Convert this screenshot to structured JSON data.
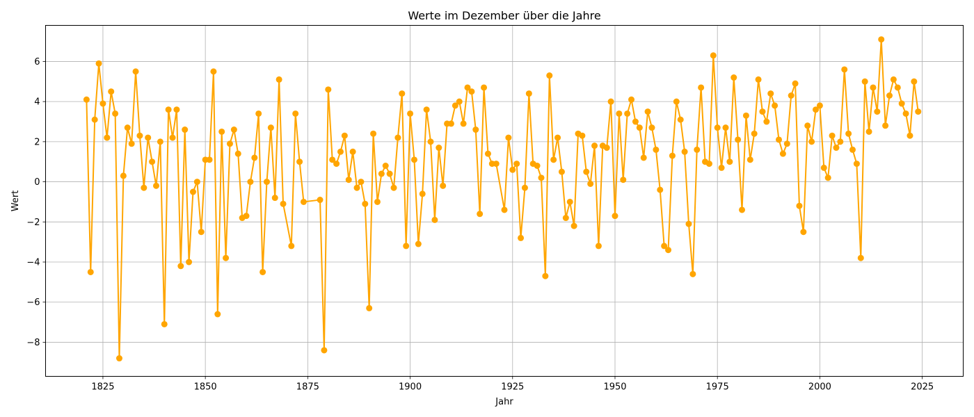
{
  "chart_data": {
    "type": "line",
    "title": "Werte im Dezember über die Jahre",
    "xlabel": "Jahr",
    "ylabel": "Wert",
    "xlim": [
      1811,
      2035
    ],
    "ylim": [
      -9.7,
      7.8
    ],
    "xticks": [
      1825,
      1850,
      1875,
      1900,
      1925,
      1950,
      1975,
      2000,
      2025
    ],
    "yticks": [
      -8,
      -6,
      -4,
      -2,
      0,
      2,
      4,
      6
    ],
    "grid": true,
    "color": "#FFA500",
    "marker": "circle",
    "series": [
      {
        "x": [
          1821,
          1822,
          1823,
          1824,
          1825,
          1826,
          1827,
          1828,
          1829,
          1830,
          1831,
          1832,
          1833,
          1834,
          1835,
          1836,
          1837,
          1838,
          1839,
          1840,
          1841,
          1842,
          1843,
          1844,
          1845,
          1846,
          1847,
          1848,
          1849,
          1850,
          1851,
          1852,
          1853,
          1854,
          1855,
          1856,
          1857,
          1858,
          1859,
          1860,
          1861,
          1862,
          1863,
          1864,
          1865,
          1866,
          1867,
          1868,
          1869,
          1871,
          1872,
          1873,
          1874,
          1878,
          1879,
          1880,
          1881,
          1882,
          1883,
          1884,
          1885,
          1886,
          1887,
          1888,
          1889,
          1890,
          1891,
          1892,
          1893,
          1894,
          1895,
          1896,
          1897,
          1898,
          1899,
          1900,
          1901,
          1902,
          1903,
          1904,
          1905,
          1906,
          1907,
          1908,
          1909,
          1910,
          1911,
          1912,
          1913,
          1914,
          1915,
          1916,
          1917,
          1918,
          1919,
          1920,
          1921,
          1923,
          1924,
          1925,
          1926,
          1927,
          1928,
          1929,
          1930,
          1931,
          1932,
          1933,
          1934,
          1935,
          1936,
          1937,
          1938,
          1939,
          1940,
          1941,
          1942,
          1943,
          1944,
          1945,
          1946,
          1947,
          1948,
          1949,
          1950,
          1951,
          1952,
          1953,
          1954,
          1955,
          1956,
          1957,
          1958,
          1959,
          1960,
          1961,
          1962,
          1963,
          1964,
          1965,
          1966,
          1967,
          1968,
          1969,
          1970,
          1971,
          1972,
          1973,
          1974,
          1975,
          1976,
          1977,
          1978,
          1979,
          1980,
          1981,
          1982,
          1983,
          1984,
          1985,
          1986,
          1987,
          1988,
          1989,
          1990,
          1991,
          1992,
          1993,
          1994,
          1995,
          1996,
          1997,
          1998,
          1999,
          2000,
          2001,
          2002,
          2003,
          2004,
          2005,
          2006,
          2007,
          2008,
          2009,
          2010,
          2011,
          2012,
          2013,
          2014,
          2015,
          2016,
          2017,
          2018,
          2019,
          2020,
          2021,
          2022,
          2023,
          2024
        ],
        "values": [
          4.1,
          -4.5,
          3.1,
          5.9,
          3.9,
          2.2,
          4.5,
          3.4,
          -8.8,
          0.3,
          2.7,
          1.9,
          5.5,
          2.3,
          -0.3,
          2.2,
          1.0,
          -0.2,
          2.0,
          -7.1,
          3.6,
          2.2,
          3.6,
          -4.2,
          2.6,
          -4.0,
          -0.5,
          0.0,
          -2.5,
          1.1,
          1.1,
          5.5,
          -6.6,
          2.5,
          -3.8,
          1.9,
          2.6,
          1.4,
          -1.8,
          -1.7,
          0.0,
          1.2,
          3.4,
          -4.5,
          0.0,
          2.7,
          -0.8,
          5.1,
          -1.1,
          -3.2,
          3.4,
          1.0,
          -1.0,
          -0.9,
          -8.4,
          4.6,
          1.1,
          0.9,
          1.5,
          2.3,
          0.1,
          1.5,
          -0.3,
          0.0,
          -1.1,
          -6.3,
          2.4,
          -1.0,
          0.4,
          0.8,
          0.4,
          -0.3,
          2.2,
          4.4,
          -3.2,
          3.4,
          1.1,
          -3.1,
          -0.6,
          3.6,
          2.0,
          -1.9,
          1.7,
          -0.2,
          2.9,
          2.9,
          3.8,
          4.0,
          2.9,
          4.7,
          4.5,
          2.6,
          -1.6,
          4.7,
          1.4,
          0.9,
          0.9,
          -1.4,
          2.2,
          0.6,
          0.9,
          -2.8,
          -0.3,
          4.4,
          0.9,
          0.8,
          0.2,
          -4.7,
          5.3,
          1.1,
          2.2,
          0.5,
          -1.8,
          -1.0,
          -2.2,
          2.4,
          2.3,
          0.5,
          -0.1,
          1.8,
          -3.2,
          1.8,
          1.7,
          4.0,
          -1.7,
          3.4,
          0.1,
          3.4,
          4.1,
          3.0,
          2.7,
          1.2,
          3.5,
          2.7,
          1.6,
          -0.4,
          -3.2,
          -3.4,
          1.3,
          4.0,
          3.1,
          1.5,
          -2.1,
          -4.6,
          1.6,
          4.7,
          1.0,
          0.9,
          6.3,
          2.7,
          0.7,
          2.7,
          1.0,
          5.2,
          2.1,
          -1.4,
          3.3,
          1.1,
          2.4,
          5.1,
          3.5,
          3.0,
          4.4,
          3.8,
          2.1,
          1.4,
          1.9,
          4.3,
          4.9,
          -1.2,
          -2.5,
          2.8,
          2.0,
          3.6,
          3.8,
          0.7,
          0.2,
          2.3,
          1.7,
          2.0,
          5.6,
          2.4,
          1.6,
          0.9,
          -3.8,
          5.0,
          2.5,
          4.7,
          3.5,
          7.1,
          2.8,
          4.3,
          5.1,
          4.7,
          3.9,
          3.4,
          2.3,
          5.0,
          3.5
        ]
      }
    ]
  }
}
